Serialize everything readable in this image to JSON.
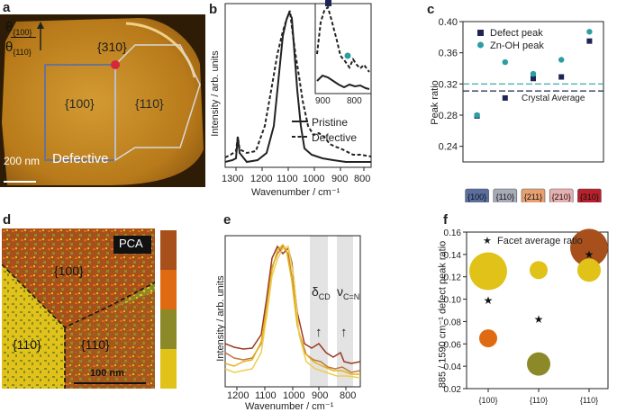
{
  "panels": {
    "a": {
      "label": "a",
      "theta_top": "θ",
      "theta_top_sub": "{100}",
      "theta_bottom": "θ",
      "theta_bottom_sub": "{110}",
      "facet_310": "{310}",
      "facet_100": "{100}",
      "facet_110": "{110}",
      "scale_bar": "200 nm",
      "caption": "Defective",
      "colors": {
        "bg_dark": "#3a2205",
        "crystal": "#c98a1e",
        "crystal_light": "#e9b860",
        "marker": "#d6283a"
      }
    },
    "b": {
      "label": "b",
      "ylabel": "Intensity / arb. units",
      "xlabel": "Wavenumber / cm⁻¹",
      "xticks": [
        "1300",
        "1200",
        "1100",
        "1000",
        "900",
        "800"
      ],
      "inset_xticks": [
        "900",
        "800"
      ],
      "legend": [
        "Pristine",
        "Defective"
      ],
      "inset_square_color": "#1c2554",
      "inset_circle_color": "#2b9ea3"
    },
    "c": {
      "label": "c",
      "ylabel": "Peak ratio",
      "legend": [
        "Defect peak",
        "Zn-OH peak"
      ],
      "avg_label": "Crystal Average",
      "chart_data": {
        "type": "scatter",
        "categories": [
          "{100}",
          "{110}",
          "{211}",
          "{210}",
          "{310}"
        ],
        "category_colors": [
          "#5a6fa0",
          "#a7abb8",
          "#e8a070",
          "#e7b0b0",
          "#b8202c"
        ],
        "series": [
          {
            "name": "Defect peak",
            "color": "#1c2554",
            "marker": "square",
            "values": [
              0.279,
              0.302,
              0.327,
              0.329,
              0.375
            ]
          },
          {
            "name": "Zn-OH peak",
            "color": "#2b9ea3",
            "marker": "circle",
            "values": [
              0.28,
              0.348,
              0.333,
              0.351,
              0.387
            ]
          }
        ],
        "reference_lines": [
          {
            "name": "Crystal Average (defect)",
            "value": 0.311,
            "color": "#1c2554"
          },
          {
            "name": "Crystal Average (Zn-OH)",
            "value": 0.32,
            "color": "#2b9ea3"
          }
        ],
        "ylim": [
          0.22,
          0.4
        ],
        "yticks": [
          "0.24",
          "0.28",
          "0.32",
          "0.36",
          "0.40"
        ]
      }
    },
    "d": {
      "label": "d",
      "badge": "PCA",
      "facet_100": "{100}",
      "facet_110_left": "{110}",
      "facet_110_right": "{110}",
      "scale_bar": "100 nm",
      "colorbar": [
        "#a8501c",
        "#e06a12",
        "#8c8a28",
        "#e0c218"
      ]
    },
    "e": {
      "label": "e",
      "ylabel": "Intensity / arb. units",
      "xlabel": "Wavenumber / cm⁻¹",
      "xticks": [
        "1200",
        "1100",
        "1000",
        "900",
        "800"
      ],
      "delta": "δ",
      "delta_sub": "CD",
      "nu": "ν",
      "nu_sub": "C=N",
      "arrow": "↑",
      "line_colors": [
        "#9a3a20",
        "#c2783a",
        "#e2b418",
        "#f0cc50"
      ]
    },
    "f": {
      "label": "f",
      "ylabel": "885 / 1590 cm⁻¹ defect peak ratio",
      "legend": "Facet average ratio",
      "star": "★",
      "chart_data": {
        "type": "scatter",
        "categories": [
          "{100}",
          "{110}",
          "{110}"
        ],
        "bubbles": [
          {
            "category": 0,
            "value": 0.125,
            "size": "large",
            "color": "#e0c218"
          },
          {
            "category": 0,
            "value": 0.065,
            "size": "small",
            "color": "#e06a12"
          },
          {
            "category": 1,
            "value": 0.126,
            "size": "small",
            "color": "#e0c218"
          },
          {
            "category": 1,
            "value": 0.042,
            "size": "medium",
            "color": "#8c8a28"
          },
          {
            "category": 2,
            "value": 0.146,
            "size": "large",
            "color": "#a8501c"
          },
          {
            "category": 2,
            "value": 0.126,
            "size": "medium",
            "color": "#e0c218"
          }
        ],
        "facet_average": [
          0.099,
          0.082,
          0.14
        ],
        "ylim": [
          0.02,
          0.16
        ],
        "yticks": [
          "0.02",
          "0.04",
          "0.06",
          "0.08",
          "0.10",
          "0.12",
          "0.14",
          "0.16"
        ]
      }
    }
  }
}
